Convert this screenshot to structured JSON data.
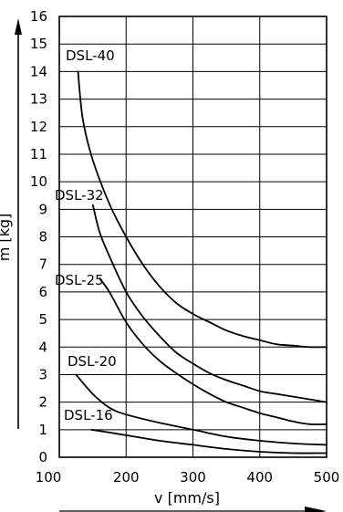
{
  "chart_data": {
    "type": "line",
    "title": "",
    "xlabel": "v [mm/s]",
    "ylabel": "m [kg]",
    "xlim": [
      100,
      500
    ],
    "ylim": [
      0,
      16
    ],
    "x_ticks": [
      100,
      200,
      300,
      400,
      500
    ],
    "y_ticks": [
      0,
      1,
      2,
      3,
      4,
      5,
      6,
      7,
      8,
      9,
      10,
      11,
      12,
      13,
      14,
      15,
      16
    ],
    "grid": true,
    "series": [
      {
        "name": "DSL-40",
        "x": [
          128,
          135,
          150,
          175,
          200,
          225,
          250,
          275,
          300,
          325,
          350,
          375,
          400,
          425,
          450,
          475,
          500
        ],
        "y": [
          14.0,
          12.3,
          10.8,
          9.2,
          8.0,
          7.0,
          6.2,
          5.6,
          5.2,
          4.9,
          4.6,
          4.4,
          4.25,
          4.1,
          4.05,
          4.0,
          4.0
        ]
      },
      {
        "name": "DSL-32",
        "x": [
          148,
          160,
          175,
          200,
          225,
          250,
          275,
          300,
          325,
          350,
          375,
          400,
          425,
          450,
          475,
          500
        ],
        "y": [
          9.4,
          8.2,
          7.3,
          6.0,
          5.1,
          4.4,
          3.8,
          3.4,
          3.05,
          2.8,
          2.6,
          2.4,
          2.3,
          2.2,
          2.1,
          2.0
        ]
      },
      {
        "name": "DSL-25",
        "x": [
          160,
          175,
          200,
          225,
          250,
          275,
          300,
          325,
          350,
          375,
          400,
          425,
          450,
          475,
          500
        ],
        "y": [
          6.5,
          6.0,
          4.9,
          4.1,
          3.5,
          3.05,
          2.65,
          2.3,
          2.0,
          1.8,
          1.6,
          1.45,
          1.3,
          1.2,
          1.2
        ]
      },
      {
        "name": "DSL-20",
        "x": [
          125,
          150,
          175,
          200,
          250,
          300,
          350,
          400,
          450,
          500
        ],
        "y": [
          3.0,
          2.3,
          1.8,
          1.55,
          1.25,
          1.0,
          0.75,
          0.6,
          0.5,
          0.45
        ]
      },
      {
        "name": "DSL-16",
        "x": [
          148,
          200,
          250,
          300,
          350,
          400,
          450,
          500
        ],
        "y": [
          1.0,
          0.8,
          0.6,
          0.45,
          0.3,
          0.2,
          0.15,
          0.15
        ]
      }
    ]
  }
}
